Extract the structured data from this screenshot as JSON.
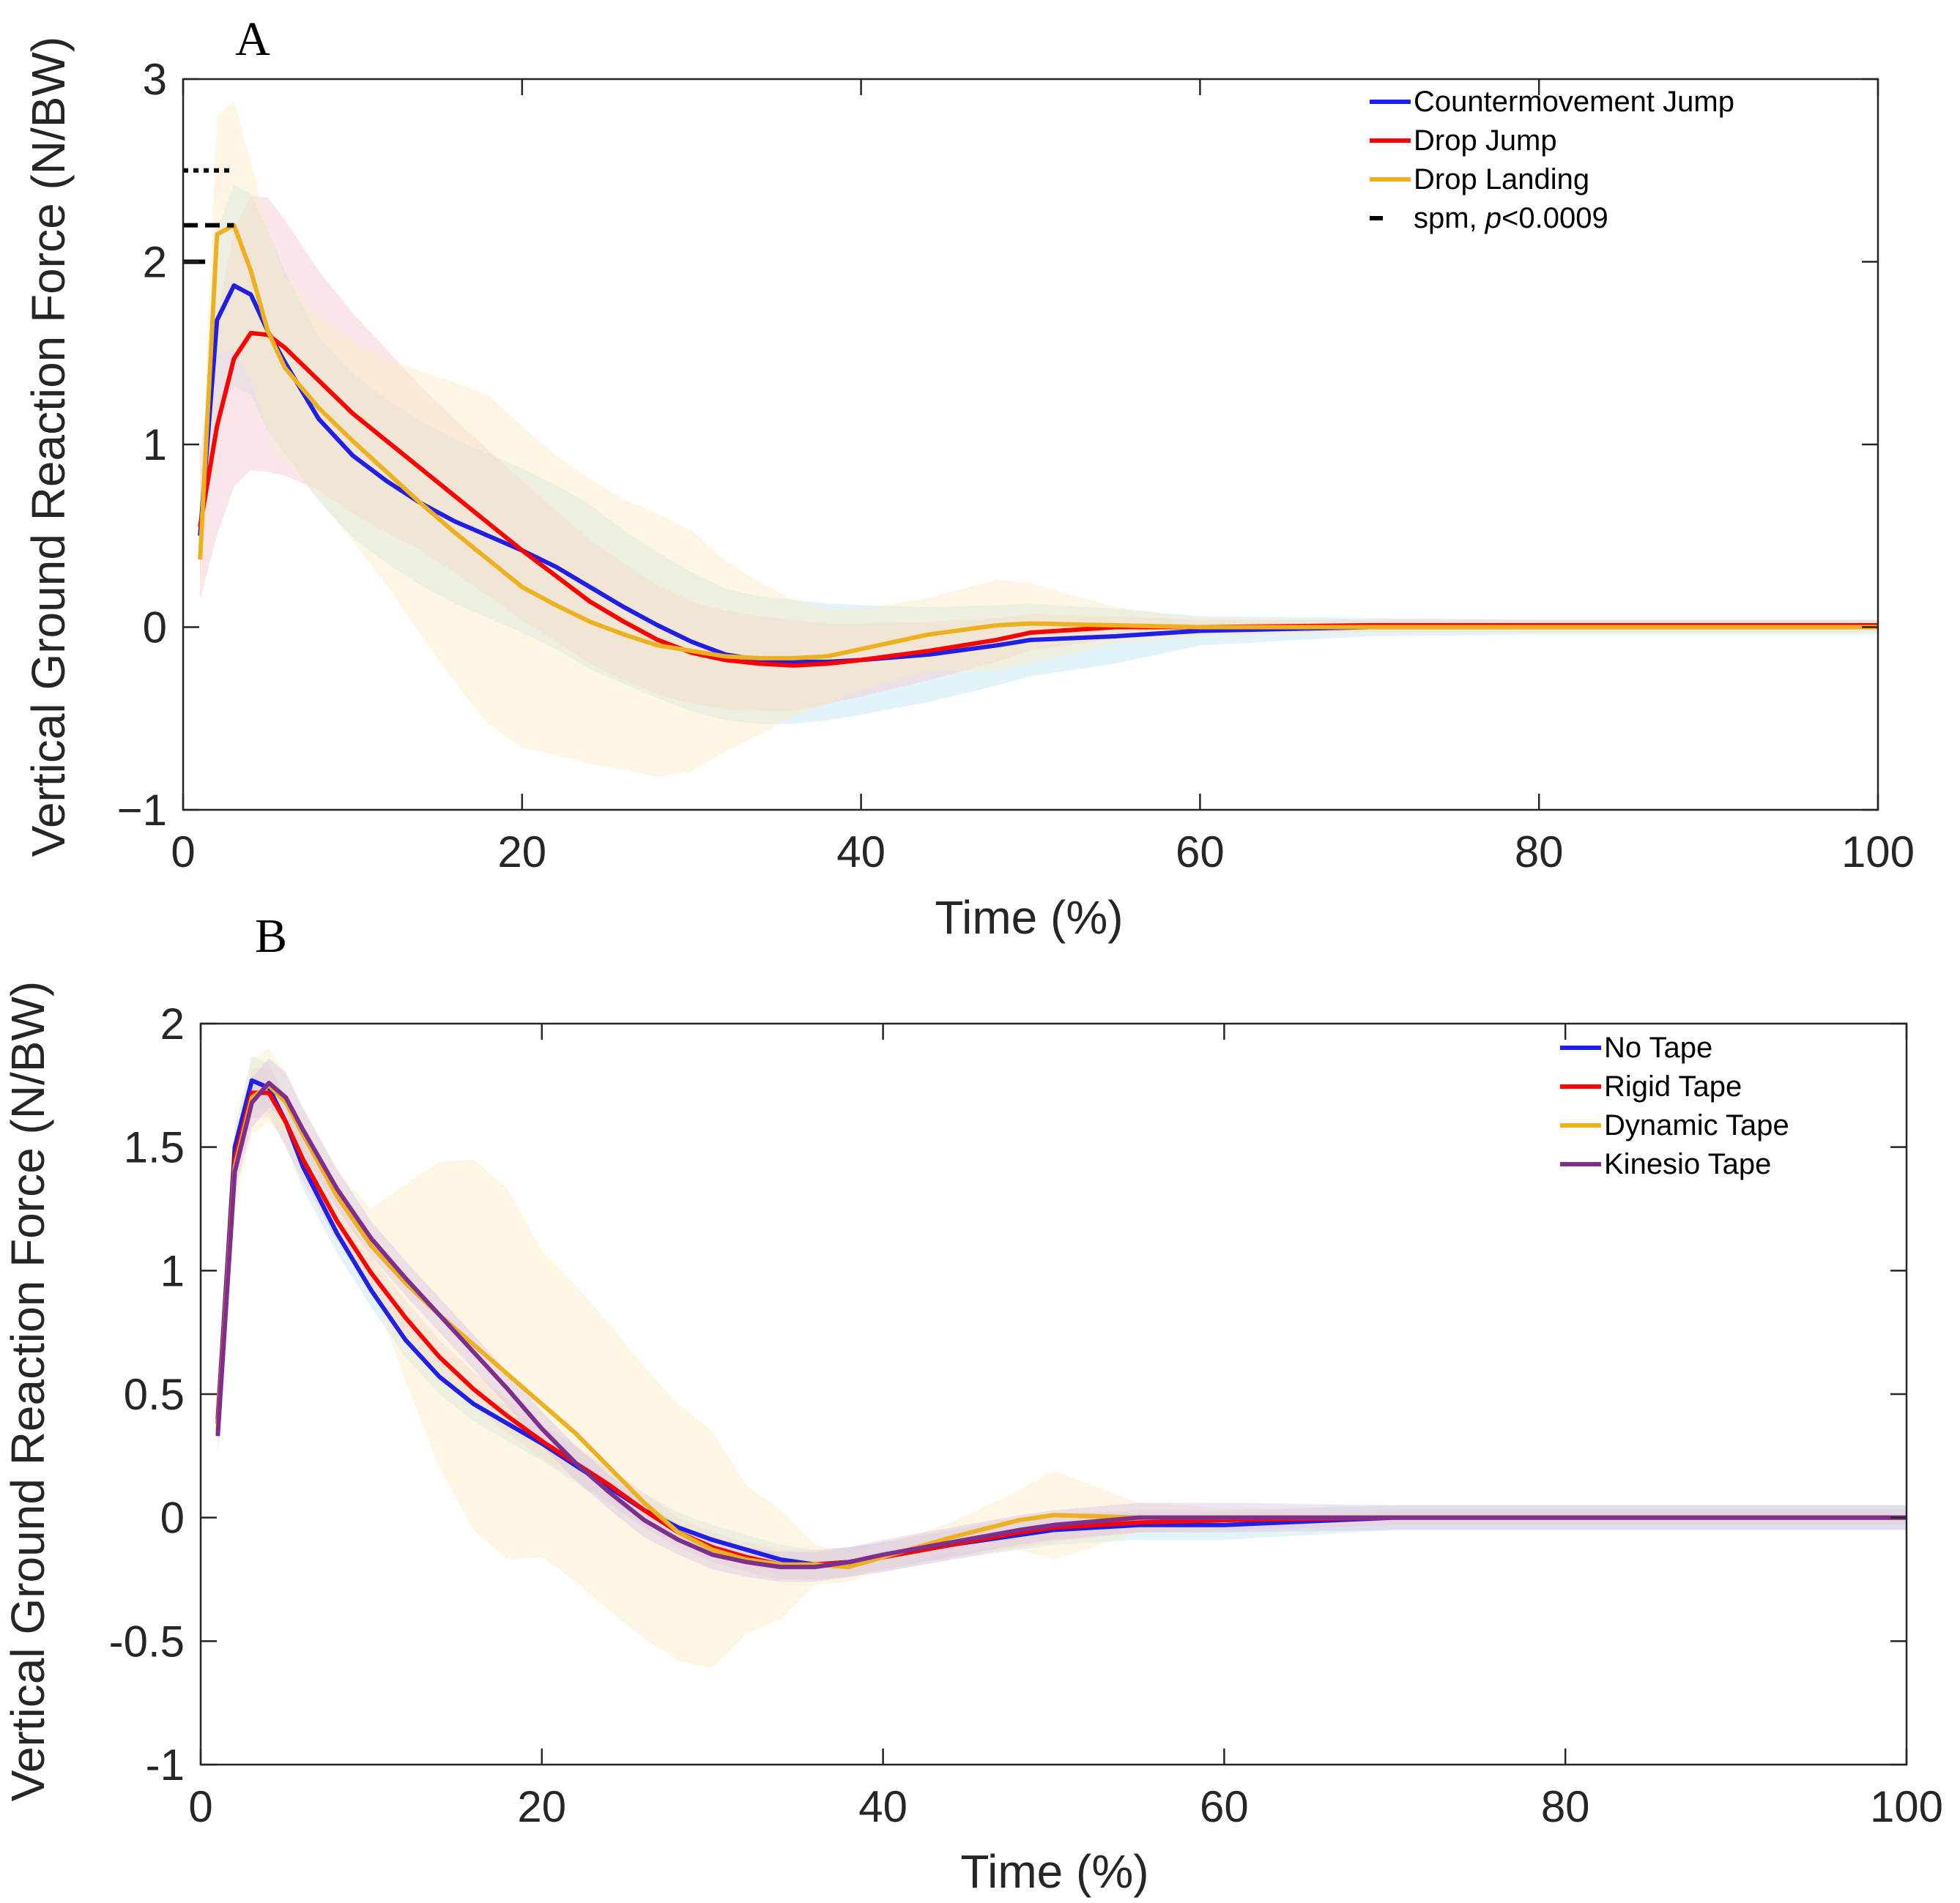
{
  "chart_data": [
    {
      "type": "line",
      "panel_label": "A",
      "xlabel": "Time (%)",
      "ylabel": "Vertical Ground Reaction Force (N/BW)",
      "xlim": [
        0,
        100
      ],
      "ylim": [
        -1,
        3
      ],
      "x_ticks": [
        0,
        20,
        40,
        60,
        80,
        100
      ],
      "x_tick_labels": [
        "0",
        "20",
        "40",
        "60",
        "80",
        "100"
      ],
      "y_ticks": [
        -1,
        0,
        1,
        2,
        3
      ],
      "y_tick_labels": [
        "−1",
        "0",
        "1",
        "2",
        "3"
      ],
      "legend_position": "top-right",
      "x": [
        1,
        2,
        3,
        4,
        5,
        6,
        8,
        10,
        12,
        14,
        16,
        18,
        20,
        22,
        24,
        26,
        28,
        30,
        32,
        34,
        36,
        38,
        40,
        44,
        48,
        50,
        55,
        60,
        70,
        80,
        90,
        100
      ],
      "series": [
        {
          "name": "Countermovement Jump",
          "color": "#1f1fe6",
          "band_color": "#bfe6f5",
          "values": [
            0.5,
            1.68,
            1.87,
            1.82,
            1.62,
            1.45,
            1.14,
            0.94,
            0.8,
            0.68,
            0.58,
            0.5,
            0.42,
            0.33,
            0.22,
            0.11,
            0.01,
            -0.08,
            -0.15,
            -0.18,
            -0.19,
            -0.19,
            -0.18,
            -0.15,
            -0.1,
            -0.07,
            -0.05,
            -0.02,
            0,
            0,
            0,
            0
          ],
          "sd": [
            0.2,
            0.5,
            0.55,
            0.55,
            0.55,
            0.5,
            0.45,
            0.45,
            0.45,
            0.45,
            0.45,
            0.45,
            0.45,
            0.45,
            0.45,
            0.42,
            0.4,
            0.38,
            0.36,
            0.35,
            0.34,
            0.32,
            0.3,
            0.26,
            0.22,
            0.2,
            0.15,
            0.08,
            0.05,
            0.04,
            0.04,
            0.04
          ]
        },
        {
          "name": "Drop Jump",
          "color": "#ff0000",
          "band_color": "#f3c7cf",
          "values": [
            0.55,
            1.1,
            1.47,
            1.61,
            1.6,
            1.53,
            1.35,
            1.17,
            1.02,
            0.87,
            0.72,
            0.57,
            0.42,
            0.28,
            0.14,
            0.03,
            -0.07,
            -0.14,
            -0.18,
            -0.2,
            -0.21,
            -0.2,
            -0.18,
            -0.13,
            -0.07,
            -0.03,
            0,
            0,
            0.01,
            0.01,
            0.01,
            0.01
          ],
          "sd": [
            0.4,
            0.6,
            0.7,
            0.75,
            0.75,
            0.7,
            0.6,
            0.55,
            0.5,
            0.45,
            0.42,
            0.4,
            0.38,
            0.36,
            0.34,
            0.32,
            0.3,
            0.28,
            0.27,
            0.26,
            0.25,
            0.22,
            0.2,
            0.16,
            0.12,
            0.1,
            0.06,
            0.04,
            0.03,
            0.03,
            0.03,
            0.03
          ]
        },
        {
          "name": "Drop Landing",
          "color": "#edb120",
          "band_color": "#fbecc3",
          "values": [
            0.37,
            2.15,
            2.2,
            1.95,
            1.62,
            1.42,
            1.2,
            1.02,
            0.85,
            0.68,
            0.52,
            0.37,
            0.22,
            0.12,
            0.03,
            -0.04,
            -0.1,
            -0.13,
            -0.16,
            -0.17,
            -0.17,
            -0.16,
            -0.12,
            -0.04,
            0.01,
            0.02,
            0.01,
            0,
            0,
            0,
            0,
            0
          ],
          "sd": [
            0.2,
            0.65,
            0.68,
            0.6,
            0.55,
            0.5,
            0.5,
            0.55,
            0.62,
            0.72,
            0.82,
            0.9,
            0.88,
            0.82,
            0.78,
            0.74,
            0.72,
            0.66,
            0.52,
            0.42,
            0.32,
            0.26,
            0.22,
            0.2,
            0.25,
            0.22,
            0.1,
            0.05,
            0.03,
            0.03,
            0.03,
            0.03
          ]
        }
      ],
      "spm_label": "spm, ",
      "spm_p": "p",
      "spm_threshold": "<0.0009",
      "spm_markers": [
        {
          "y": 2.5,
          "style": "dotted",
          "x_end": 3
        },
        {
          "y": 2.2,
          "style": "dashed",
          "x_end": 3
        },
        {
          "y": 2.0,
          "style": "solid",
          "x_end": 1.3
        }
      ]
    },
    {
      "type": "line",
      "panel_label": "B",
      "xlabel": "Time (%)",
      "ylabel": "Vertical Ground Reaction Force (N/BW)",
      "xlim": [
        0,
        100
      ],
      "ylim": [
        -1,
        2
      ],
      "x_ticks": [
        0,
        20,
        40,
        60,
        80,
        100
      ],
      "x_tick_labels": [
        "0",
        "20",
        "40",
        "60",
        "80",
        "100"
      ],
      "y_ticks": [
        -1,
        -0.5,
        0,
        0.5,
        1,
        1.5,
        2
      ],
      "y_tick_labels": [
        "-1",
        "-0.5",
        "0",
        "0.5",
        "1",
        "1.5",
        "2"
      ],
      "legend_position": "top-right",
      "x": [
        1,
        2,
        3,
        4,
        5,
        6,
        8,
        10,
        12,
        14,
        16,
        18,
        20,
        22,
        24,
        26,
        28,
        30,
        32,
        34,
        36,
        38,
        40,
        44,
        48,
        50,
        55,
        60,
        70,
        80,
        90,
        100
      ],
      "series": [
        {
          "name": "No Tape",
          "color": "#1f1fe6",
          "band_color": "#bfe6f5",
          "values": [
            0.4,
            1.5,
            1.77,
            1.74,
            1.6,
            1.42,
            1.15,
            0.92,
            0.72,
            0.57,
            0.46,
            0.38,
            0.3,
            0.21,
            0.12,
            0.03,
            -0.04,
            -0.09,
            -0.13,
            -0.17,
            -0.19,
            -0.18,
            -0.16,
            -0.11,
            -0.07,
            -0.05,
            -0.03,
            -0.03,
            0,
            0,
            0,
            0
          ],
          "sd": [
            0.05,
            0.08,
            0.1,
            0.1,
            0.1,
            0.09,
            0.08,
            0.07,
            0.07,
            0.07,
            0.07,
            0.07,
            0.07,
            0.07,
            0.07,
            0.07,
            0.06,
            0.06,
            0.06,
            0.06,
            0.06,
            0.06,
            0.06,
            0.06,
            0.06,
            0.06,
            0.06,
            0.06,
            0.05,
            0.05,
            0.05,
            0.05
          ]
        },
        {
          "name": "Rigid Tape",
          "color": "#ff0000",
          "band_color": "#f3c7cf",
          "values": [
            0.38,
            1.45,
            1.72,
            1.72,
            1.6,
            1.45,
            1.2,
            0.99,
            0.81,
            0.65,
            0.52,
            0.41,
            0.31,
            0.22,
            0.13,
            0.03,
            -0.06,
            -0.12,
            -0.16,
            -0.19,
            -0.19,
            -0.18,
            -0.16,
            -0.11,
            -0.06,
            -0.04,
            -0.02,
            -0.01,
            0,
            0,
            0,
            0
          ],
          "sd": [
            0.05,
            0.08,
            0.1,
            0.1,
            0.1,
            0.09,
            0.08,
            0.07,
            0.07,
            0.07,
            0.07,
            0.07,
            0.07,
            0.07,
            0.07,
            0.07,
            0.06,
            0.06,
            0.06,
            0.06,
            0.06,
            0.06,
            0.06,
            0.06,
            0.06,
            0.06,
            0.04,
            0.04,
            0.03,
            0.03,
            0.03,
            0.03
          ]
        },
        {
          "name": "Dynamic Tape",
          "color": "#edb120",
          "band_color": "#fbecc3",
          "values": [
            0.35,
            1.42,
            1.7,
            1.75,
            1.68,
            1.55,
            1.3,
            1.1,
            0.95,
            0.82,
            0.7,
            0.58,
            0.46,
            0.34,
            0.2,
            0.06,
            -0.06,
            -0.13,
            -0.17,
            -0.19,
            -0.19,
            -0.2,
            -0.16,
            -0.08,
            -0.01,
            0.01,
            0,
            0,
            0,
            0,
            0,
            0
          ],
          "sd": [
            0.1,
            0.15,
            0.15,
            0.15,
            0.12,
            0.1,
            0.1,
            0.15,
            0.4,
            0.62,
            0.75,
            0.75,
            0.62,
            0.6,
            0.58,
            0.55,
            0.52,
            0.48,
            0.3,
            0.22,
            0.08,
            0.06,
            0.05,
            0.06,
            0.12,
            0.18,
            0.06,
            0.04,
            0.03,
            0.03,
            0.03,
            0.03
          ]
        },
        {
          "name": "Kinesio Tape",
          "color": "#7e2f8e",
          "band_color": "#d8c6e6",
          "values": [
            0.33,
            1.4,
            1.68,
            1.76,
            1.7,
            1.57,
            1.33,
            1.13,
            0.97,
            0.82,
            0.67,
            0.52,
            0.36,
            0.22,
            0.1,
            -0.01,
            -0.09,
            -0.15,
            -0.18,
            -0.2,
            -0.2,
            -0.18,
            -0.15,
            -0.1,
            -0.05,
            -0.03,
            0,
            0,
            0,
            0,
            0,
            0
          ],
          "sd": [
            0.05,
            0.08,
            0.1,
            0.1,
            0.1,
            0.09,
            0.08,
            0.07,
            0.07,
            0.07,
            0.07,
            0.07,
            0.07,
            0.07,
            0.07,
            0.07,
            0.06,
            0.06,
            0.06,
            0.06,
            0.06,
            0.06,
            0.06,
            0.06,
            0.06,
            0.06,
            0.06,
            0.06,
            0.05,
            0.05,
            0.05,
            0.05
          ]
        }
      ]
    }
  ]
}
